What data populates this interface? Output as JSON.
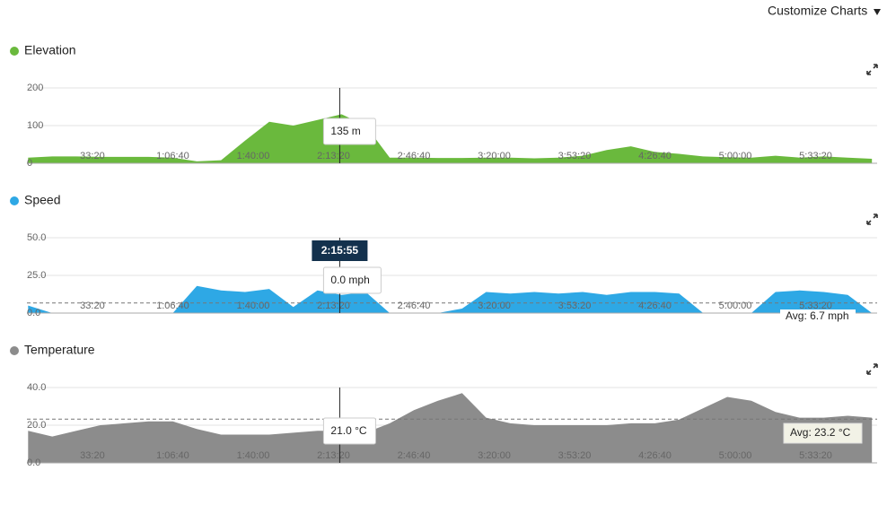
{
  "header": {
    "customize": "Customize Charts"
  },
  "chart_data": [
    {
      "type": "area",
      "title": "Elevation",
      "color": "#6ab93d",
      "x": [
        400,
        1000,
        1600,
        2200,
        2800,
        3400,
        4000,
        4600,
        5200,
        5800,
        6400,
        7000,
        7600,
        8200,
        8800,
        9400,
        10000,
        10600,
        11200,
        11800,
        12400,
        13000,
        13600,
        14200,
        14800,
        15400,
        16000,
        16600,
        17200,
        17800,
        18400,
        19000,
        19600,
        20200,
        20800,
        21400
      ],
      "values": [
        15,
        18,
        18,
        17,
        17,
        17,
        15,
        5,
        8,
        60,
        110,
        100,
        115,
        130,
        100,
        15,
        15,
        14,
        14,
        15,
        15,
        13,
        15,
        20,
        35,
        45,
        30,
        25,
        18,
        16,
        15,
        20,
        15,
        18,
        15,
        12
      ],
      "xlim": [
        370,
        21530
      ],
      "xticks": [
        {
          "value": 2000,
          "label": "33:20"
        },
        {
          "value": 4000,
          "label": "1:06:40"
        },
        {
          "value": 6000,
          "label": "1:40:00"
        },
        {
          "value": 8000,
          "label": "2:13:20"
        },
        {
          "value": 10000,
          "label": "2:46:40"
        },
        {
          "value": 12000,
          "label": "3:20:00"
        },
        {
          "value": 14000,
          "label": "3:53:20"
        },
        {
          "value": 16000,
          "label": "4:26:40"
        },
        {
          "value": 18000,
          "label": "5:00:00"
        },
        {
          "value": 20000,
          "label": "5:33:20"
        }
      ],
      "ylim": [
        0,
        200
      ],
      "yticks": [
        0,
        100,
        200
      ],
      "cursor_label": "135 m"
    },
    {
      "type": "area",
      "title": "Speed",
      "color": "#2ea8e5",
      "x": [
        400,
        1000,
        1600,
        2200,
        2800,
        3400,
        4000,
        4600,
        5200,
        5800,
        6400,
        7000,
        7600,
        8200,
        8800,
        9400,
        10000,
        10600,
        11200,
        11800,
        12400,
        13000,
        13600,
        14200,
        14800,
        15400,
        16000,
        16600,
        17200,
        17800,
        18400,
        19000,
        19600,
        20200,
        20800,
        21400
      ],
      "values": [
        5,
        0,
        0,
        0,
        0,
        0,
        0,
        18,
        15,
        14,
        16,
        4,
        15,
        12,
        14,
        0,
        0,
        0,
        3,
        14,
        13,
        14,
        13,
        14,
        12,
        14,
        14,
        13,
        0,
        0,
        0,
        14,
        15,
        14,
        12,
        0
      ],
      "xlim": [
        370,
        21530
      ],
      "xticks": [
        {
          "value": 2000,
          "label": "33:20"
        },
        {
          "value": 4000,
          "label": "1:06:40"
        },
        {
          "value": 6000,
          "label": "1:40:00"
        },
        {
          "value": 8000,
          "label": "2:13:20"
        },
        {
          "value": 10000,
          "label": "2:46:40"
        },
        {
          "value": 12000,
          "label": "3:20:00"
        },
        {
          "value": 14000,
          "label": "3:53:20"
        },
        {
          "value": 16000,
          "label": "4:26:40"
        },
        {
          "value": 18000,
          "label": "5:00:00"
        },
        {
          "value": 20000,
          "label": "5:33:20"
        }
      ],
      "ylim": [
        0,
        50
      ],
      "yticks": [
        {
          "value": 0,
          "label": "0.0"
        },
        {
          "value": 25,
          "label": "25.0"
        },
        {
          "value": 50,
          "label": "50.0"
        }
      ],
      "avg": 6.7,
      "avg_label": "Avg: 6.7 mph",
      "cursor_time": {
        "value": 8155,
        "label": "2:15:55"
      },
      "cursor_label": "0.0 mph"
    },
    {
      "type": "area",
      "title": "Temperature",
      "color": "#8c8c8c",
      "x": [
        400,
        1000,
        1600,
        2200,
        2800,
        3400,
        4000,
        4600,
        5200,
        5800,
        6400,
        7000,
        7600,
        8200,
        8800,
        9400,
        10000,
        10600,
        11200,
        11800,
        12400,
        13000,
        13600,
        14200,
        14800,
        15400,
        16000,
        16600,
        17200,
        17800,
        18400,
        19000,
        19600,
        20200,
        20800,
        21400
      ],
      "values": [
        17,
        14,
        17,
        20,
        21,
        22,
        22,
        18,
        15,
        15,
        15,
        16,
        17,
        17,
        16,
        21,
        28,
        33,
        37,
        24,
        21,
        20,
        20,
        20,
        20,
        21,
        21,
        23,
        29,
        35,
        33,
        27,
        24,
        24,
        25,
        24
      ],
      "xlim": [
        370,
        21530
      ],
      "xticks": [
        {
          "value": 2000,
          "label": "33:20"
        },
        {
          "value": 4000,
          "label": "1:06:40"
        },
        {
          "value": 6000,
          "label": "1:40:00"
        },
        {
          "value": 8000,
          "label": "2:13:20"
        },
        {
          "value": 10000,
          "label": "2:46:40"
        },
        {
          "value": 12000,
          "label": "3:20:00"
        },
        {
          "value": 14000,
          "label": "3:53:20"
        },
        {
          "value": 16000,
          "label": "4:26:40"
        },
        {
          "value": 18000,
          "label": "5:00:00"
        },
        {
          "value": 20000,
          "label": "5:33:20"
        }
      ],
      "ylim": [
        0,
        40
      ],
      "yticks": [
        {
          "value": 0,
          "label": "0.0"
        },
        {
          "value": 20,
          "label": "20.0"
        },
        {
          "value": 40,
          "label": "40.0"
        }
      ],
      "avg": 23.2,
      "avg_label": "Avg: 23.2 °C",
      "cursor_label": "21.0 °C"
    }
  ]
}
